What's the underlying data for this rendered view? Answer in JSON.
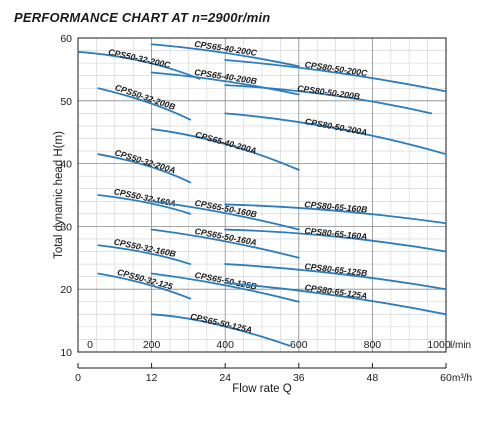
{
  "title": "PERFORMANCE CHART AT n=2900r/min",
  "chart_data": {
    "type": "line",
    "grid": true,
    "xlabel": "Flow rate Q",
    "ylabel": "Total dynamic head H(m)",
    "ylim": [
      10,
      60
    ],
    "yticks": [
      10,
      20,
      30,
      40,
      50,
      60
    ],
    "x_axis_top": {
      "unit": "l/min",
      "range": [
        0,
        1000
      ],
      "ticks": [
        "0",
        "200",
        "400",
        "600",
        "800",
        "1000"
      ]
    },
    "x_axis_bottom": {
      "unit": "m³/h",
      "range": [
        0,
        60
      ],
      "ticks": [
        "0",
        "12",
        "24",
        "36",
        "48",
        "60"
      ]
    },
    "series": [
      {
        "name": "CPS50-32-200C",
        "x": [
          0,
          180,
          330
        ],
        "y": [
          57.8,
          57.0,
          53.5
        ]
      },
      {
        "name": "CPS50-32-200B",
        "x": [
          55,
          200,
          305
        ],
        "y": [
          52.0,
          50.0,
          47.0
        ]
      },
      {
        "name": "CPS50-32-200A",
        "x": [
          55,
          200,
          305
        ],
        "y": [
          41.5,
          40.0,
          37.0
        ]
      },
      {
        "name": "CPS50-32-160A",
        "x": [
          55,
          200,
          305
        ],
        "y": [
          35.0,
          34.0,
          32.0
        ]
      },
      {
        "name": "CPS50-32-160B",
        "x": [
          55,
          200,
          305
        ],
        "y": [
          27.0,
          26.0,
          24.0
        ]
      },
      {
        "name": "CPS50-32-125",
        "x": [
          55,
          200,
          305
        ],
        "y": [
          22.5,
          21.0,
          18.5
        ]
      },
      {
        "name": "CPS65-40-200C",
        "x": [
          200,
          400,
          600
        ],
        "y": [
          59.0,
          58.0,
          55.5
        ]
      },
      {
        "name": "CPS65-40-200B",
        "x": [
          200,
          400,
          600
        ],
        "y": [
          54.5,
          53.5,
          51.0
        ]
      },
      {
        "name": "CPS65-40-200A",
        "x": [
          200,
          400,
          600
        ],
        "y": [
          45.5,
          44.0,
          39.0
        ]
      },
      {
        "name": "CPS65-50-160B",
        "x": [
          200,
          400,
          600
        ],
        "y": [
          34.0,
          32.5,
          29.5
        ]
      },
      {
        "name": "CPS65-50-160A",
        "x": [
          200,
          400,
          600
        ],
        "y": [
          29.5,
          28.0,
          25.0
        ]
      },
      {
        "name": "CPS65-50-125B",
        "x": [
          200,
          400,
          600
        ],
        "y": [
          22.5,
          21.0,
          18.0
        ]
      },
      {
        "name": "CPS65-50-125A",
        "x": [
          200,
          350,
          575
        ],
        "y": [
          16.0,
          15.5,
          11.0
        ]
      },
      {
        "name": "CPS80-50-200C",
        "x": [
          400,
          700,
          1000
        ],
        "y": [
          56.5,
          55.0,
          51.5
        ]
      },
      {
        "name": "CPS80-50-200B",
        "x": [
          400,
          700,
          960
        ],
        "y": [
          52.5,
          51.5,
          48.0
        ]
      },
      {
        "name": "CPS80-50-200A",
        "x": [
          400,
          700,
          1000
        ],
        "y": [
          48.0,
          46.5,
          41.5
        ]
      },
      {
        "name": "CPS80-65-160B",
        "x": [
          400,
          700,
          1000
        ],
        "y": [
          33.5,
          33.0,
          30.5
        ]
      },
      {
        "name": "CPS80-65-160A",
        "x": [
          400,
          700,
          1000
        ],
        "y": [
          29.5,
          29.0,
          26.0
        ]
      },
      {
        "name": "CPS80-65-125B",
        "x": [
          400,
          700,
          1000
        ],
        "y": [
          24.0,
          23.0,
          20.0
        ]
      },
      {
        "name": "CPS80-65-125A",
        "x": [
          400,
          700,
          1000
        ],
        "y": [
          21.0,
          19.5,
          16.0
        ]
      }
    ]
  },
  "colors": {
    "curve": "#2b7dbd",
    "major_grid": "#8a8a8a",
    "minor_grid": "#d0d0d0",
    "axis": "#1a1a1a"
  }
}
